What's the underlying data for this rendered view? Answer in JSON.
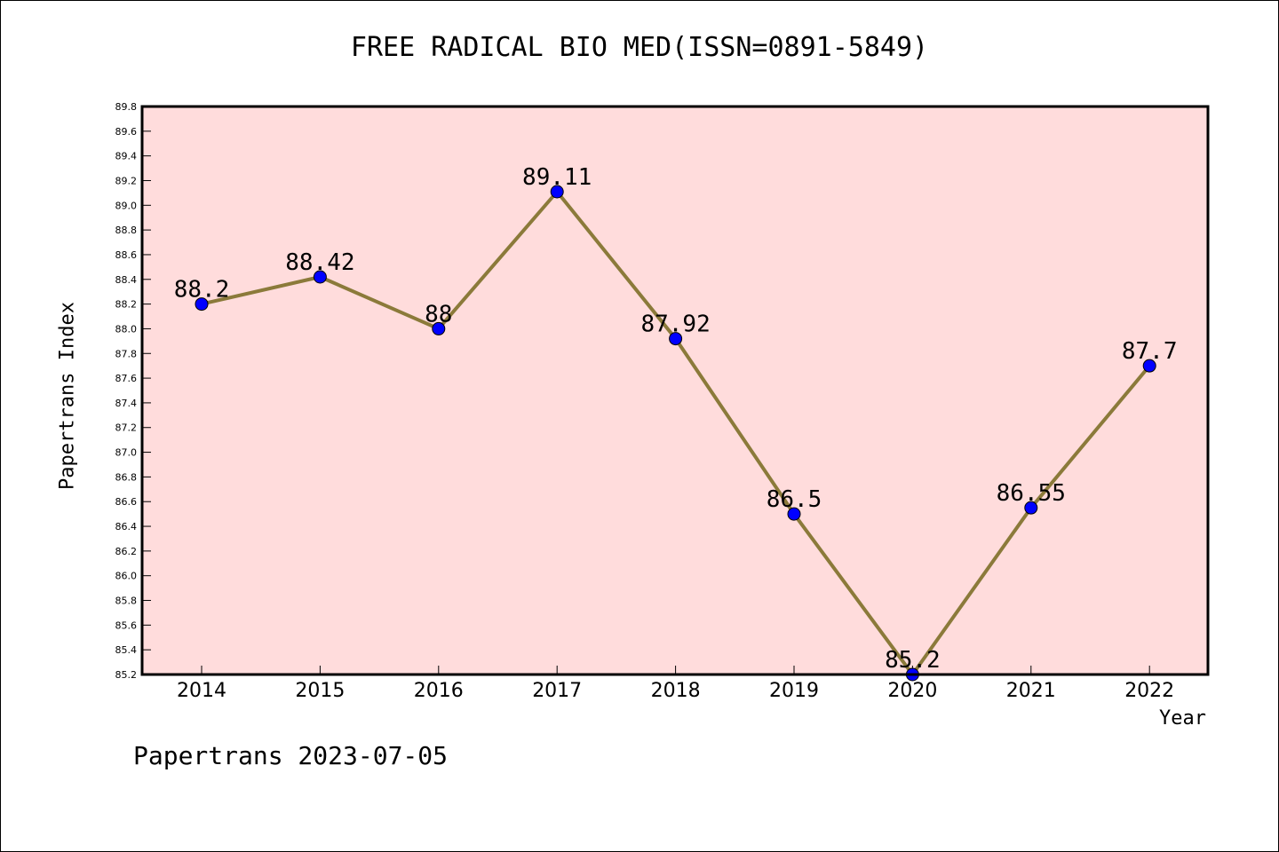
{
  "title": "FREE RADICAL BIO MED(ISSN=0891-5849)",
  "footer": "Papertrans 2023-07-05",
  "colors": {
    "plot_background": "#ffdcdc",
    "line": "#8b7a3a",
    "marker": "#0000ff"
  },
  "chart_data": {
    "type": "line",
    "title": "FREE RADICAL BIO MED(ISSN=0891-5849)",
    "xlabel": "Year",
    "ylabel": "Papertrans Index",
    "categories": [
      "2014",
      "2015",
      "2016",
      "2017",
      "2018",
      "2019",
      "2020",
      "2021",
      "2022"
    ],
    "values": [
      88.2,
      88.42,
      88,
      89.11,
      87.92,
      86.5,
      85.2,
      86.55,
      87.7
    ],
    "data_labels": [
      "88.2",
      "88.42",
      "88",
      "89.11",
      "87.92",
      "86.5",
      "85.2",
      "86.55",
      "87.7"
    ],
    "ylim": [
      85.2,
      89.8
    ],
    "yticks": [
      "85.2",
      "85.4",
      "85.6",
      "85.8",
      "86.0",
      "86.2",
      "86.4",
      "86.6",
      "86.8",
      "87.0",
      "87.2",
      "87.4",
      "87.6",
      "87.8",
      "88.0",
      "88.2",
      "88.4",
      "88.6",
      "88.8",
      "89.0",
      "89.2",
      "89.4",
      "89.6",
      "89.8"
    ],
    "grid": false,
    "legend": "none"
  }
}
